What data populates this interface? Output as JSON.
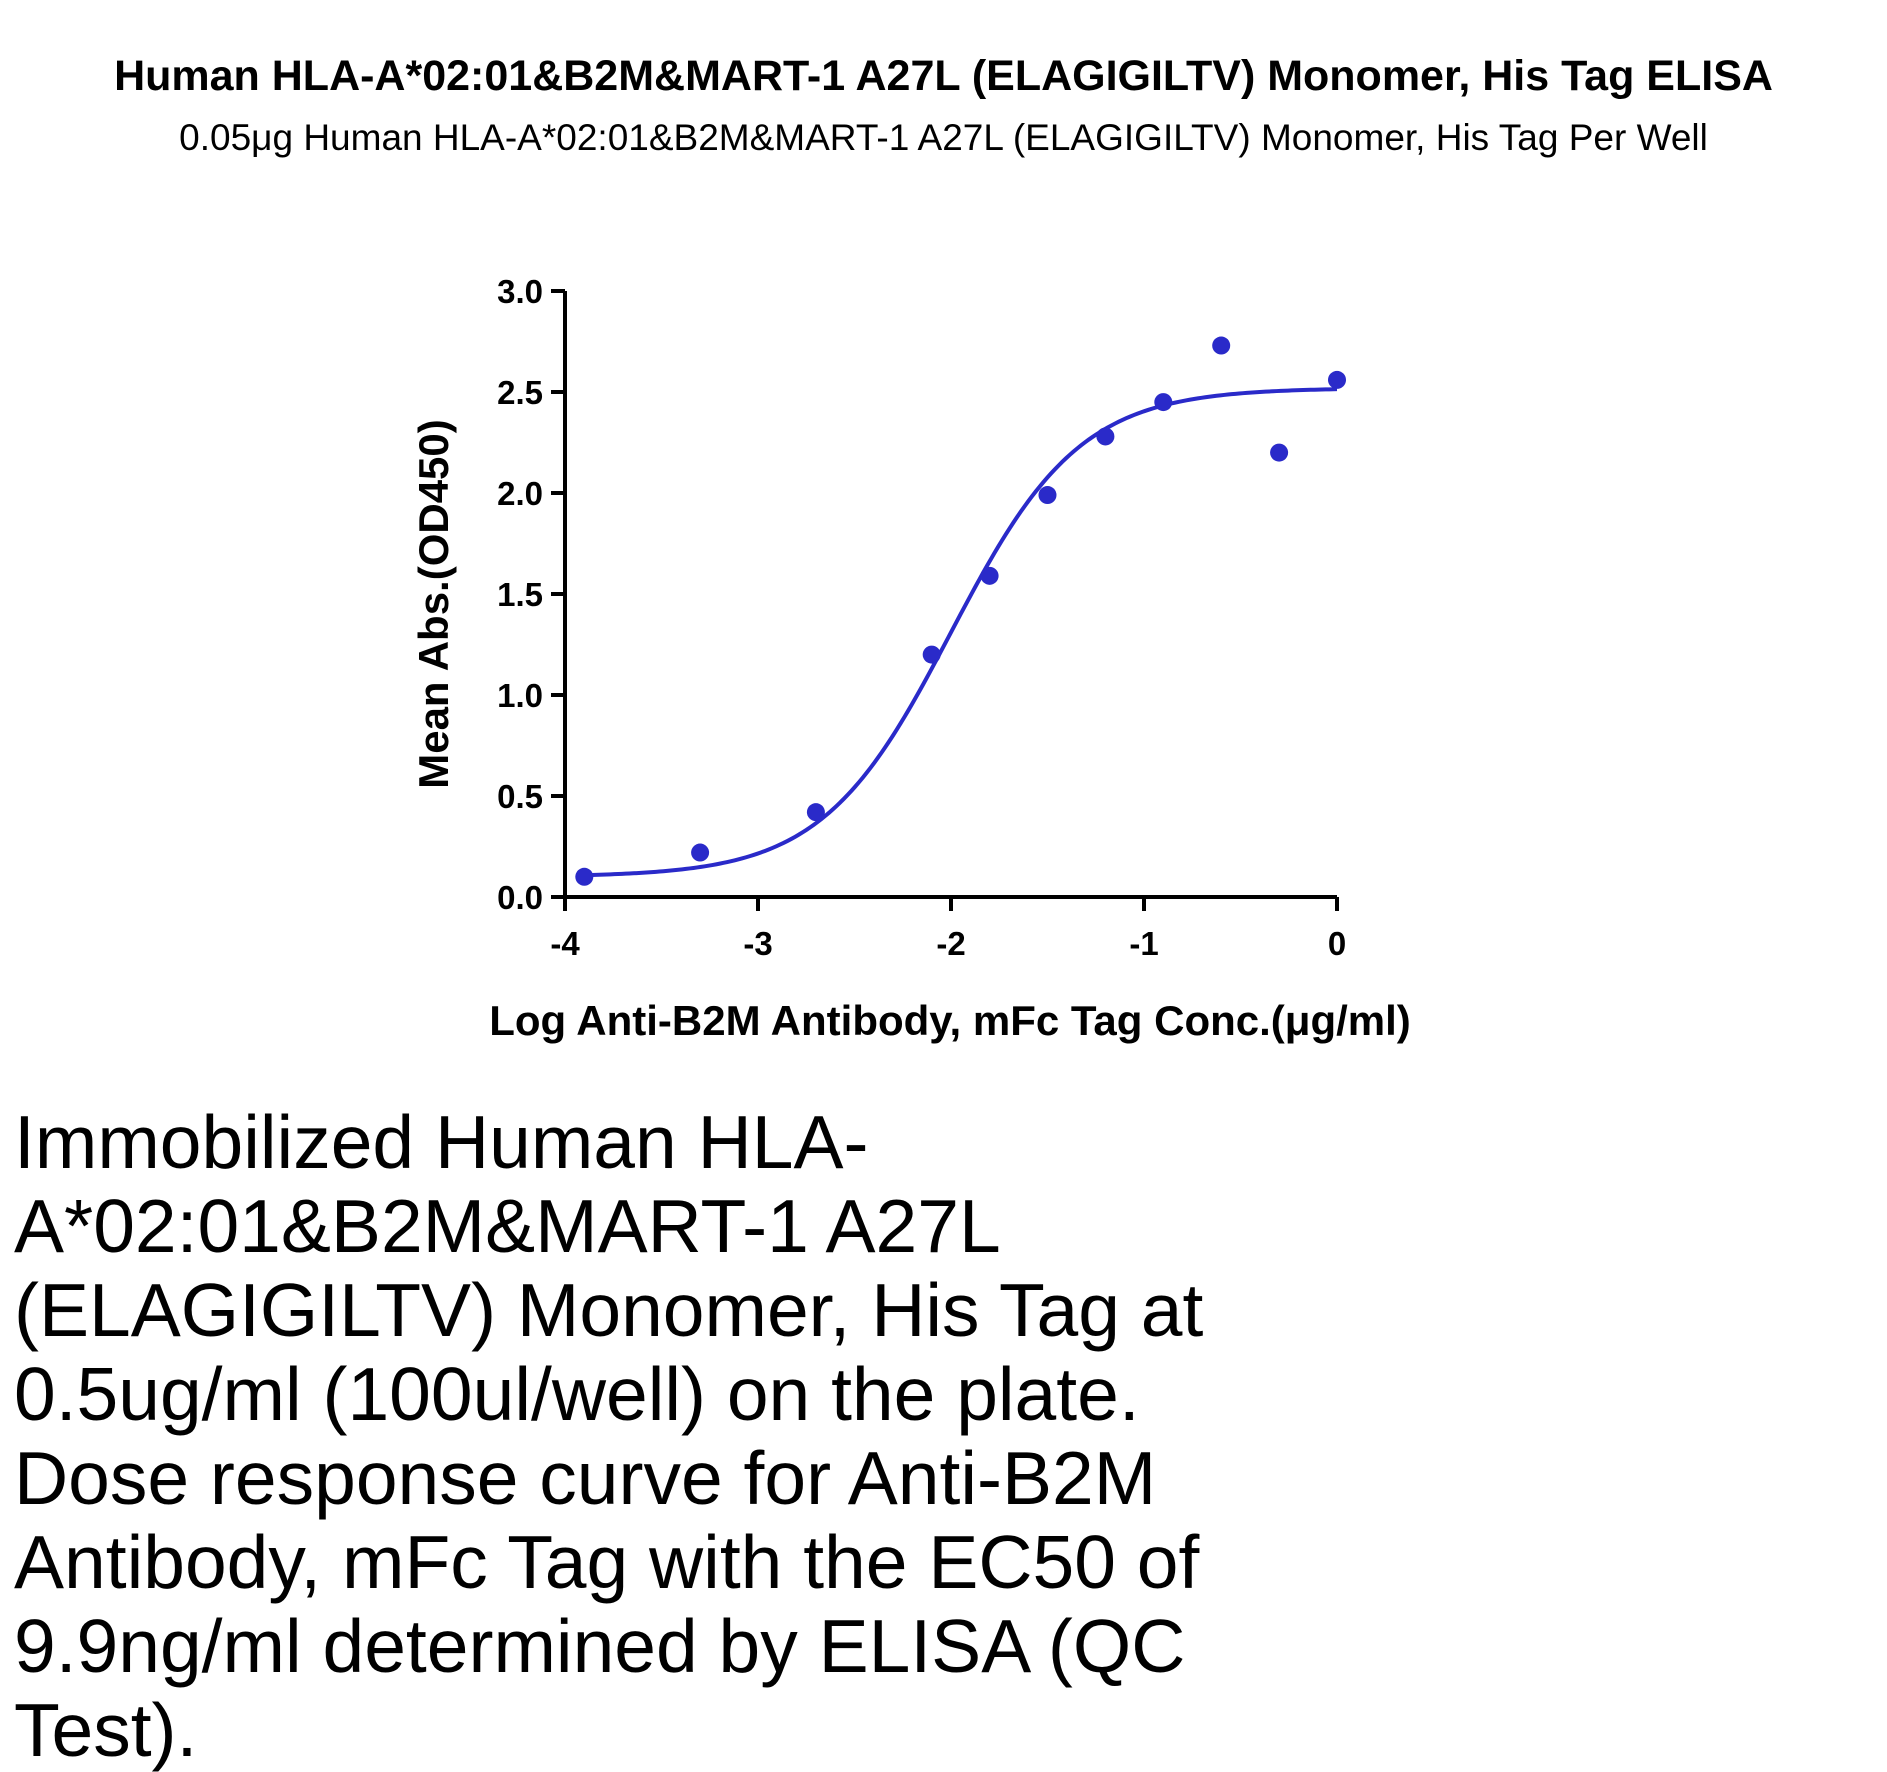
{
  "chart_data": {
    "type": "scatter",
    "title": "Human HLA-A*02:01&B2M&MART-1 A27L (ELAGIGILTV) Monomer, His Tag ELISA",
    "subtitle": "0.05μg  Human HLA-A*02:01&B2M&MART-1 A27L (ELAGIGILTV) Monomer, His Tag Per Well",
    "xlabel": "Log Anti-B2M Antibody, mFc Tag Conc.(μg/ml)",
    "ylabel": "Mean Abs.(OD450)",
    "xlim": [
      -4,
      0
    ],
    "ylim": [
      0,
      3.0
    ],
    "xticks": [
      "-4",
      "-3",
      "-2",
      "-1",
      "0"
    ],
    "xtick_values": [
      -4,
      -3,
      -2,
      -1,
      0
    ],
    "yticks": [
      "0.0",
      "0.5",
      "1.0",
      "1.5",
      "2.0",
      "2.5",
      "3.0"
    ],
    "ytick_values": [
      0,
      0.5,
      1.0,
      1.5,
      2.0,
      2.5,
      3.0
    ],
    "grid": false,
    "color": "#2a2ac9",
    "points": {
      "x": [
        -3.9,
        -3.3,
        -2.7,
        -2.1,
        -1.8,
        -1.5,
        -1.2,
        -0.9,
        -0.6,
        -0.3,
        0.0
      ],
      "y": [
        0.1,
        0.22,
        0.42,
        1.2,
        1.59,
        1.99,
        2.28,
        2.45,
        2.73,
        2.2,
        2.56
      ]
    },
    "fit_curve": {
      "type": "4PL",
      "bottom": 0.1,
      "top": 2.52,
      "log_ec50": -2.0,
      "hill_slope": 1.3
    }
  },
  "caption": "Immobilized Human HLA-A*02:01&B2M&MART-1 A27L (ELAGIGILTV) Monomer, His Tag at 0.5ug/ml (100ul/well) on the plate. Dose response curve for Anti-B2M Antibody, mFc Tag with the EC50 of 9.9ng/ml determined by ELISA (QC Test)."
}
